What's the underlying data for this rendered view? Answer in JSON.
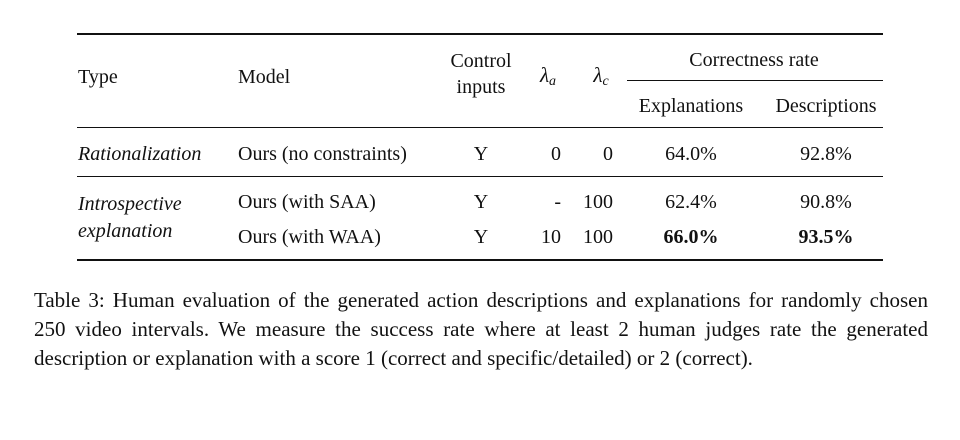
{
  "table": {
    "headers": {
      "type": "Type",
      "model": "Model",
      "control_line1": "Control",
      "control_line2": "inputs",
      "lambda_a": "λ",
      "lambda_a_sub": "a",
      "lambda_c": "λ",
      "lambda_c_sub": "c",
      "correctness": "Correctness rate",
      "explanations": "Explanations",
      "descriptions": "Descriptions"
    },
    "groups": [
      {
        "type_lines": [
          "Rationalization"
        ],
        "rows": [
          {
            "model": "Ours (no constraints)",
            "control": "Y",
            "lambda_a": "0",
            "lambda_c": "0",
            "explanations": "64.0%",
            "descriptions": "92.8%"
          }
        ]
      },
      {
        "type_lines": [
          "Introspective",
          "explanation"
        ],
        "rows": [
          {
            "model": "Ours (with SAA)",
            "control": "Y",
            "lambda_a": "-",
            "lambda_c": "100",
            "explanations": "62.4%",
            "descriptions": "90.8%"
          },
          {
            "model": "Ours (with WAA)",
            "control": "Y",
            "lambda_a": "10",
            "lambda_c": "100",
            "explanations": "66.0%",
            "descriptions": "93.5%"
          }
        ]
      }
    ]
  },
  "caption": "Table 3: Human evaluation of the generated action descriptions and explanations for randomly chosen 250 video intervals. We measure the success rate where at least 2 human judges rate the generated description or explanation with a score 1 (correct and specific/detailed) or 2 (correct)."
}
